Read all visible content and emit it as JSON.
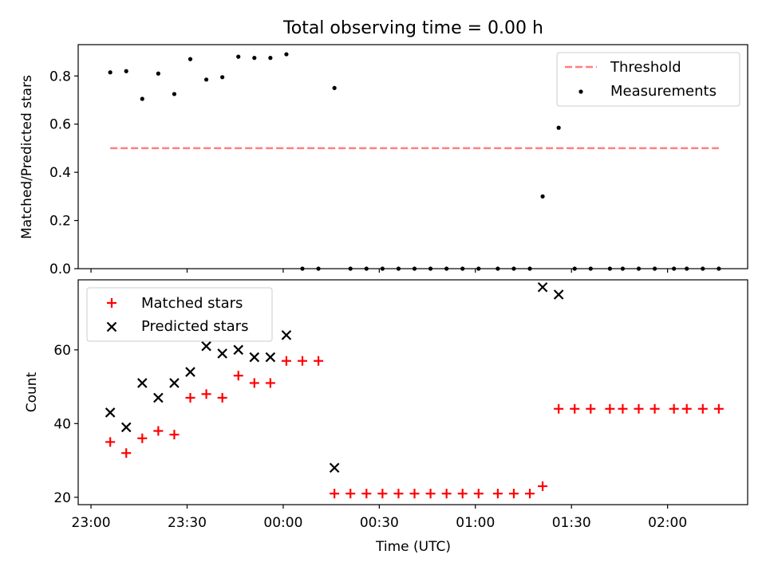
{
  "figure_title": "Total observing time = 0.00 h",
  "colors": {
    "threshold": "#ff7f7f",
    "measurements": "#000000",
    "matched": "#ff0000",
    "predicted": "#000000"
  },
  "chart_data": [
    {
      "type": "scatter",
      "ylabel": "Matched/Predicted stars",
      "xlabel": "",
      "ylim": [
        0,
        0.93
      ],
      "yticks": [
        "0.0",
        "0.2",
        "0.4",
        "0.6",
        "0.8"
      ],
      "grid": false,
      "legend": {
        "placement": "top-right",
        "entries": [
          "Threshold",
          "Measurements"
        ]
      },
      "series": [
        {
          "name": "Threshold",
          "style": "dashed-line",
          "x": [
            "23:06",
            "02:16"
          ],
          "y": [
            0.5,
            0.5
          ]
        },
        {
          "name": "Measurements",
          "style": "dot",
          "x": [
            "23:06",
            "23:11",
            "23:16",
            "23:21",
            "23:26",
            "23:31",
            "23:36",
            "23:41",
            "23:46",
            "23:51",
            "23:56",
            "00:01",
            "00:06",
            "00:11",
            "00:16",
            "00:21",
            "00:26",
            "00:31",
            "00:36",
            "00:41",
            "00:46",
            "00:51",
            "00:56",
            "01:01",
            "01:07",
            "01:12",
            "01:17",
            "01:21",
            "01:26",
            "01:31",
            "01:36",
            "01:42",
            "01:46",
            "01:51",
            "01:56",
            "02:02",
            "02:06",
            "02:11",
            "02:16"
          ],
          "y": [
            0.815,
            0.82,
            0.705,
            0.81,
            0.725,
            0.87,
            0.785,
            0.795,
            0.88,
            0.875,
            0.875,
            0.89,
            0.0,
            0.0,
            0.75,
            0.0,
            0.0,
            0.0,
            0.0,
            0.0,
            0.0,
            0.0,
            0.0,
            0.0,
            0.0,
            0.0,
            0.0,
            0.3,
            0.585,
            0.0,
            0.0,
            0.0,
            0.0,
            0.0,
            0.0,
            0.0,
            0.0,
            0.0,
            0.0
          ]
        }
      ]
    },
    {
      "type": "scatter",
      "ylabel": "Count",
      "xlabel": "Time (UTC)",
      "xlim": [
        "22:56",
        "02:25"
      ],
      "xticks": [
        "23:00",
        "23:30",
        "00:00",
        "00:30",
        "01:00",
        "01:30",
        "02:00"
      ],
      "ylim": [
        18,
        79
      ],
      "yticks": [
        "20",
        "40",
        "60"
      ],
      "grid": false,
      "legend": {
        "placement": "top-left",
        "entries": [
          "Matched stars",
          "Predicted stars"
        ]
      },
      "series": [
        {
          "name": "Matched stars",
          "marker": "plus",
          "x": [
            "23:06",
            "23:11",
            "23:16",
            "23:21",
            "23:26",
            "23:31",
            "23:36",
            "23:41",
            "23:46",
            "23:51",
            "23:56",
            "00:01",
            "00:06",
            "00:11",
            "00:16",
            "00:21",
            "00:26",
            "00:31",
            "00:36",
            "00:41",
            "00:46",
            "00:51",
            "00:56",
            "01:01",
            "01:07",
            "01:12",
            "01:17",
            "01:21",
            "01:26",
            "01:31",
            "01:36",
            "01:42",
            "01:46",
            "01:51",
            "01:56",
            "02:02",
            "02:06",
            "02:11",
            "02:16"
          ],
          "y": [
            35,
            32,
            36,
            38,
            37,
            47,
            48,
            47,
            53,
            51,
            51,
            57,
            57,
            57,
            21,
            21,
            21,
            21,
            21,
            21,
            21,
            21,
            21,
            21,
            21,
            21,
            21,
            23,
            44,
            44,
            44,
            44,
            44,
            44,
            44,
            44,
            44,
            44,
            44
          ]
        },
        {
          "name": "Predicted stars",
          "marker": "x",
          "x": [
            "23:06",
            "23:11",
            "23:16",
            "23:21",
            "23:26",
            "23:31",
            "23:36",
            "23:41",
            "23:46",
            "23:51",
            "23:56",
            "00:01",
            "00:16",
            "01:21",
            "01:26"
          ],
          "y": [
            43,
            39,
            51,
            47,
            51,
            54,
            61,
            59,
            60,
            58,
            58,
            64,
            28,
            77,
            75
          ]
        }
      ]
    }
  ]
}
